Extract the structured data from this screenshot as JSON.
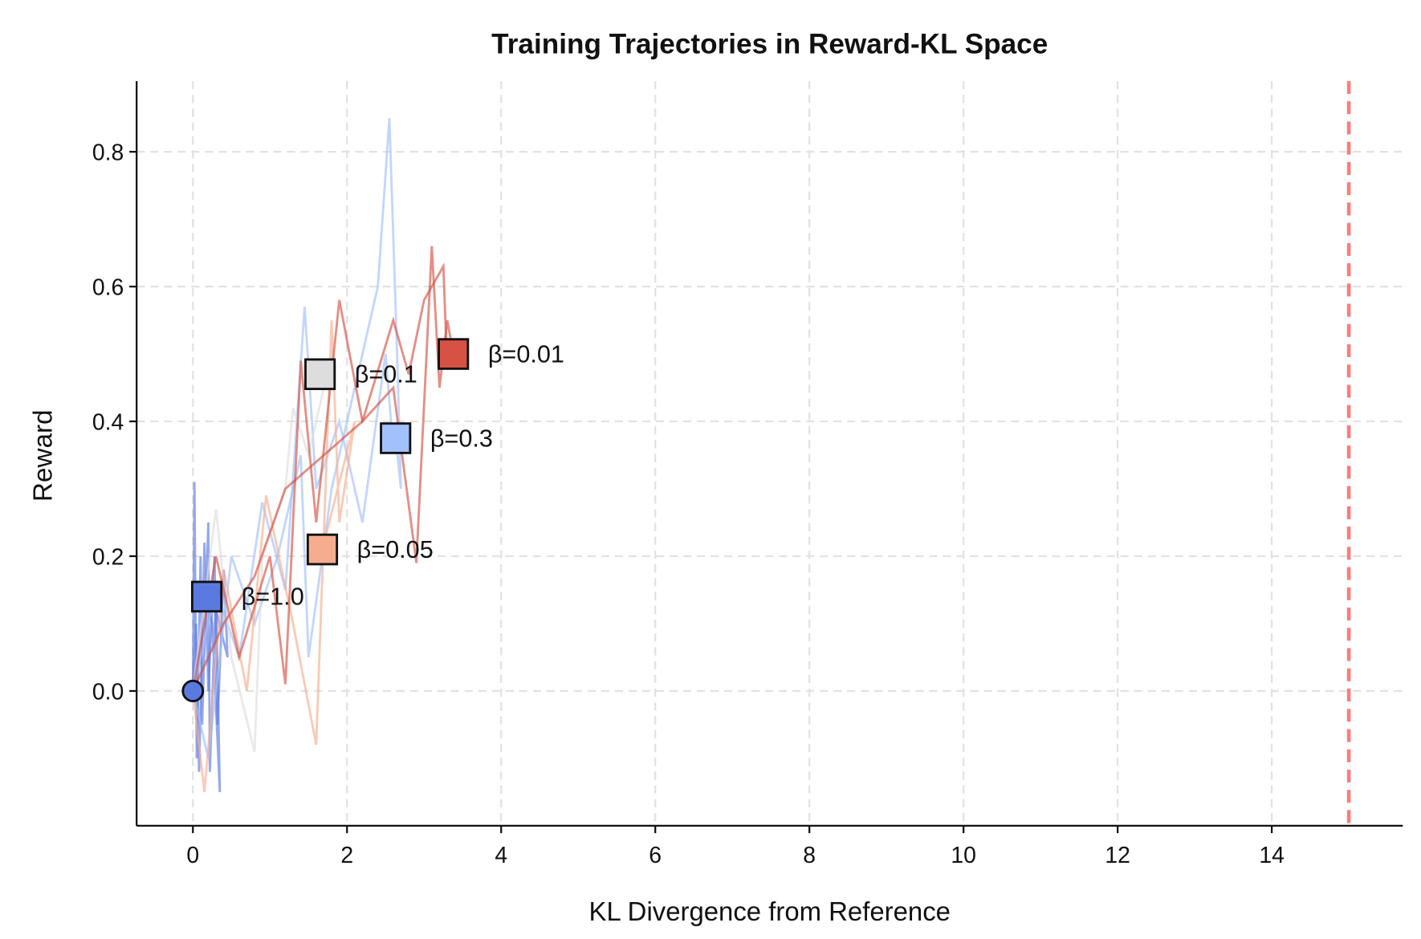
{
  "chart_data": {
    "type": "line",
    "title": "Training Trajectories in Reward-KL Space",
    "xlabel": "KL Divergence from Reference",
    "ylabel": "Reward",
    "xlim": [
      -0.73,
      15.7
    ],
    "ylim": [
      -0.2,
      0.905
    ],
    "xticks": [
      0,
      2,
      4,
      6,
      8,
      10,
      12,
      14
    ],
    "yticks": [
      0.0,
      0.2,
      0.4,
      0.6,
      0.8
    ],
    "grid": true,
    "reference_line": {
      "x": 15,
      "color": "#ff7b7b",
      "style": "dashed"
    },
    "start_point": {
      "x": 0,
      "y": 0,
      "color": "#5a7ae0"
    },
    "series": [
      {
        "name": "β=1.0",
        "color": "#5a7ae0",
        "final": [
          0.18,
          0.14
        ],
        "runs": [
          [
            [
              0,
              0
            ],
            [
              0.02,
              0.31
            ],
            [
              0.05,
              -0.1
            ],
            [
              0.1,
              0.2
            ],
            [
              0.12,
              -0.05
            ],
            [
              0.2,
              0.25
            ],
            [
              0.22,
              -0.12
            ],
            [
              0.3,
              0.15
            ],
            [
              0.35,
              -0.15
            ],
            [
              0.25,
              0.1
            ],
            [
              0.18,
              0.14
            ]
          ],
          [
            [
              0,
              0
            ],
            [
              0.04,
              0.1
            ],
            [
              0.08,
              -0.12
            ],
            [
              0.15,
              0.22
            ],
            [
              0.2,
              0.0
            ],
            [
              0.28,
              0.2
            ],
            [
              0.32,
              -0.05
            ],
            [
              0.4,
              0.18
            ],
            [
              0.45,
              0.05
            ],
            [
              0.3,
              0.12
            ],
            [
              0.2,
              0.14
            ]
          ]
        ]
      },
      {
        "name": "β=0.3",
        "color": "#a2c0fb",
        "final": [
          2.63,
          0.375
        ],
        "runs": [
          [
            [
              0,
              0
            ],
            [
              0.2,
              -0.1
            ],
            [
              0.5,
              0.2
            ],
            [
              0.8,
              0.1
            ],
            [
              1.1,
              0.2
            ],
            [
              1.4,
              0.35
            ],
            [
              1.5,
              0.05
            ],
            [
              1.8,
              0.3
            ],
            [
              2.1,
              0.45
            ],
            [
              2.4,
              0.6
            ],
            [
              2.55,
              0.85
            ],
            [
              2.65,
              0.5
            ],
            [
              2.7,
              0.3
            ],
            [
              2.63,
              0.375
            ]
          ],
          [
            [
              0,
              0
            ],
            [
              0.3,
              0.15
            ],
            [
              0.6,
              0.05
            ],
            [
              0.9,
              0.28
            ],
            [
              1.2,
              0.15
            ],
            [
              1.45,
              0.57
            ],
            [
              1.6,
              0.3
            ],
            [
              1.9,
              0.4
            ],
            [
              2.2,
              0.25
            ],
            [
              2.5,
              0.5
            ],
            [
              2.6,
              0.36
            ]
          ]
        ]
      },
      {
        "name": "β=0.1",
        "color": "#dddddd",
        "final": [
          1.65,
          0.47
        ],
        "runs": [
          [
            [
              0,
              0
            ],
            [
              0.3,
              0.27
            ],
            [
              0.5,
              0.05
            ],
            [
              0.8,
              -0.09
            ],
            [
              0.9,
              0.2
            ],
            [
              1.2,
              0.3
            ],
            [
              1.3,
              0.42
            ],
            [
              1.5,
              0.35
            ],
            [
              1.7,
              0.45
            ],
            [
              1.65,
              0.47
            ]
          ]
        ]
      },
      {
        "name": "β=0.05",
        "color": "#f6ad8f",
        "final": [
          1.68,
          0.21
        ],
        "runs": [
          [
            [
              0,
              0
            ],
            [
              0.15,
              -0.15
            ],
            [
              0.4,
              0.18
            ],
            [
              0.7,
              0.0
            ],
            [
              0.95,
              0.29
            ],
            [
              1.3,
              0.1
            ],
            [
              1.6,
              -0.08
            ],
            [
              1.8,
              0.55
            ],
            [
              1.9,
              0.25
            ],
            [
              2.1,
              0.4
            ],
            [
              1.68,
              0.21
            ]
          ]
        ]
      },
      {
        "name": "β=0.01",
        "color": "#d65244",
        "final": [
          3.38,
          0.5
        ],
        "runs": [
          [
            [
              0,
              0
            ],
            [
              0.3,
              0.2
            ],
            [
              0.6,
              0.05
            ],
            [
              1.0,
              0.2
            ],
            [
              1.2,
              0.01
            ],
            [
              1.4,
              0.49
            ],
            [
              1.6,
              0.25
            ],
            [
              1.9,
              0.58
            ],
            [
              2.2,
              0.4
            ],
            [
              2.6,
              0.45
            ],
            [
              2.9,
              0.19
            ],
            [
              3.1,
              0.66
            ],
            [
              3.2,
              0.45
            ],
            [
              3.3,
              0.55
            ],
            [
              3.38,
              0.5
            ]
          ],
          [
            [
              0,
              0
            ],
            [
              0.4,
              0.1
            ],
            [
              0.8,
              0.17
            ],
            [
              1.2,
              0.3
            ],
            [
              1.7,
              0.35
            ],
            [
              2.2,
              0.4
            ],
            [
              2.6,
              0.55
            ],
            [
              2.8,
              0.47
            ],
            [
              3.0,
              0.58
            ],
            [
              3.25,
              0.63
            ],
            [
              3.3,
              0.48
            ]
          ]
        ]
      }
    ]
  }
}
